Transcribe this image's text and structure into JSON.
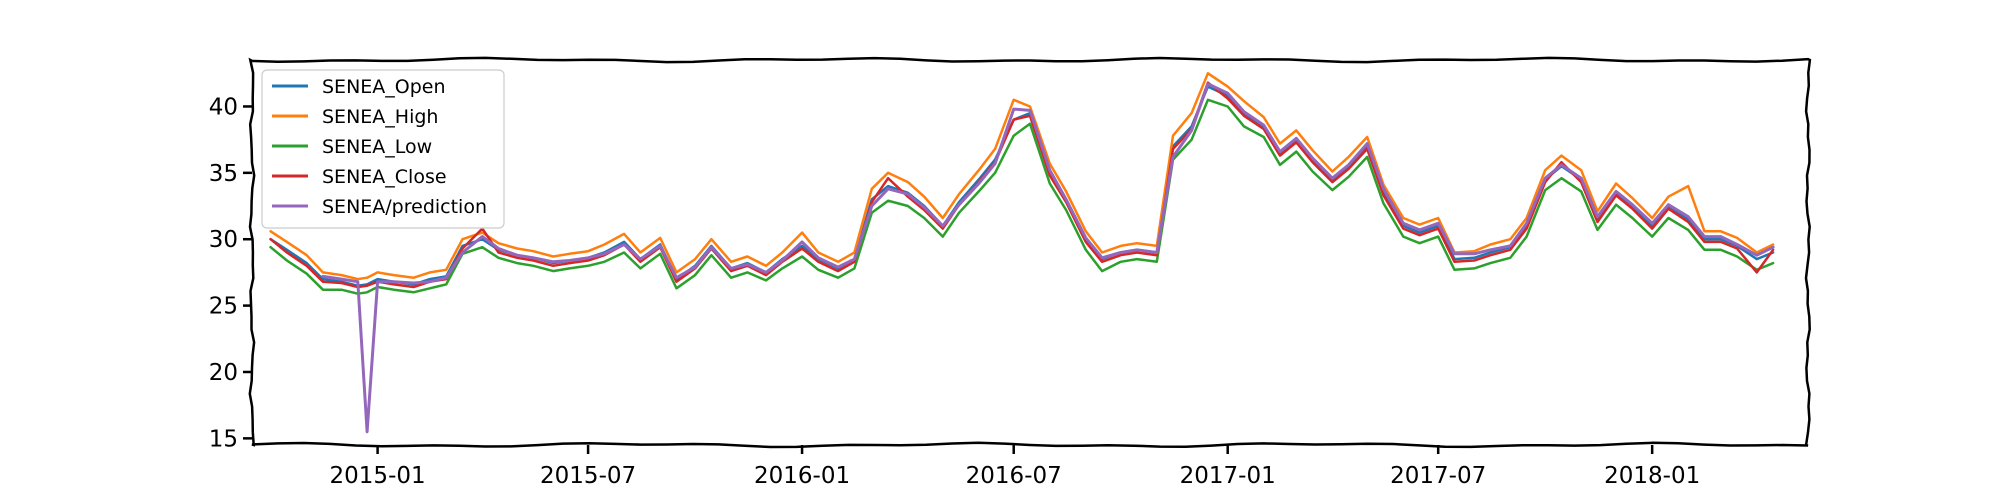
{
  "chart_data": {
    "type": "line",
    "title": "",
    "xlabel": "",
    "ylabel": "",
    "x_range": [
      "2014-09-15",
      "2018-05-15"
    ],
    "ylim": [
      14.5,
      43.5
    ],
    "x_ticks": [
      {
        "date": "2015-01-01",
        "label": "2015-01"
      },
      {
        "date": "2015-07-01",
        "label": "2015-07"
      },
      {
        "date": "2016-01-01",
        "label": "2016-01"
      },
      {
        "date": "2016-07-01",
        "label": "2016-07"
      },
      {
        "date": "2017-01-01",
        "label": "2017-01"
      },
      {
        "date": "2017-07-01",
        "label": "2017-07"
      },
      {
        "date": "2018-01-01",
        "label": "2018-01"
      }
    ],
    "y_ticks": [
      15,
      20,
      25,
      30,
      35,
      40
    ],
    "grid": false,
    "legend_position": "top-left",
    "x": [
      "2014-10-01",
      "2014-10-15",
      "2014-11-01",
      "2014-11-15",
      "2014-12-01",
      "2014-12-15",
      "2014-12-23",
      "2015-01-01",
      "2015-01-15",
      "2015-02-01",
      "2015-02-15",
      "2015-03-01",
      "2015-03-15",
      "2015-04-01",
      "2015-04-15",
      "2015-05-01",
      "2015-05-15",
      "2015-06-01",
      "2015-06-15",
      "2015-07-01",
      "2015-07-15",
      "2015-08-01",
      "2015-08-15",
      "2015-09-01",
      "2015-09-15",
      "2015-10-01",
      "2015-10-15",
      "2015-11-01",
      "2015-11-15",
      "2015-12-01",
      "2015-12-15",
      "2016-01-01",
      "2016-01-15",
      "2016-02-01",
      "2016-02-15",
      "2016-03-01",
      "2016-03-15",
      "2016-04-01",
      "2016-04-15",
      "2016-05-01",
      "2016-05-15",
      "2016-06-01",
      "2016-06-15",
      "2016-07-01",
      "2016-07-15",
      "2016-08-01",
      "2016-08-15",
      "2016-09-01",
      "2016-09-15",
      "2016-10-01",
      "2016-10-15",
      "2016-11-01",
      "2016-11-15",
      "2016-12-01",
      "2016-12-15",
      "2017-01-01",
      "2017-01-15",
      "2017-02-01",
      "2017-02-15",
      "2017-03-01",
      "2017-03-15",
      "2017-04-01",
      "2017-04-15",
      "2017-05-01",
      "2017-05-15",
      "2017-06-01",
      "2017-06-15",
      "2017-07-01",
      "2017-07-15",
      "2017-08-01",
      "2017-08-15",
      "2017-09-01",
      "2017-09-15",
      "2017-10-01",
      "2017-10-15",
      "2017-11-01",
      "2017-11-15",
      "2017-12-01",
      "2017-12-15",
      "2018-01-01",
      "2018-01-15",
      "2018-02-01",
      "2018-02-15",
      "2018-03-01",
      "2018-03-15",
      "2018-04-01",
      "2018-04-15"
    ],
    "series": [
      {
        "name": "SENEA_Open",
        "color": "#1f77b4",
        "values": [
          30.0,
          29.2,
          28.2,
          27.0,
          26.8,
          26.5,
          26.6,
          27.0,
          26.8,
          26.6,
          27.0,
          27.2,
          29.5,
          30.0,
          29.2,
          28.8,
          28.6,
          28.2,
          28.4,
          28.6,
          29.0,
          29.8,
          28.5,
          29.6,
          27.0,
          28.0,
          29.5,
          27.8,
          28.2,
          27.5,
          28.5,
          29.5,
          28.5,
          27.8,
          28.5,
          33.0,
          34.0,
          33.5,
          32.5,
          31.0,
          32.8,
          34.5,
          36.0,
          39.0,
          39.5,
          35.0,
          33.0,
          30.0,
          28.5,
          29.0,
          29.2,
          29.0,
          37.0,
          38.5,
          41.5,
          40.8,
          39.5,
          38.5,
          36.5,
          37.5,
          36.0,
          34.5,
          35.5,
          37.0,
          33.5,
          31.0,
          30.5,
          31.0,
          28.5,
          28.6,
          29.0,
          29.4,
          31.0,
          34.5,
          35.5,
          34.5,
          31.5,
          33.5,
          32.5,
          31.0,
          32.5,
          31.5,
          30.0,
          30.0,
          29.5,
          28.5,
          29.0
        ]
      },
      {
        "name": "SENEA_High",
        "color": "#ff7f0e",
        "values": [
          30.6,
          29.8,
          28.8,
          27.5,
          27.3,
          27.0,
          27.1,
          27.5,
          27.3,
          27.1,
          27.5,
          27.7,
          30.0,
          30.5,
          29.7,
          29.3,
          29.1,
          28.7,
          28.9,
          29.1,
          29.6,
          30.4,
          29.0,
          30.1,
          27.5,
          28.5,
          30.0,
          28.3,
          28.7,
          28.0,
          29.0,
          30.5,
          29.0,
          28.3,
          29.0,
          33.8,
          35.0,
          34.3,
          33.2,
          31.6,
          33.4,
          35.2,
          36.8,
          40.5,
          40.0,
          35.7,
          33.6,
          30.6,
          29.0,
          29.5,
          29.7,
          29.5,
          37.8,
          39.5,
          42.5,
          41.5,
          40.4,
          39.2,
          37.2,
          38.2,
          36.7,
          35.1,
          36.2,
          37.7,
          34.1,
          31.6,
          31.1,
          31.6,
          29.0,
          29.1,
          29.6,
          30.0,
          31.6,
          35.2,
          36.3,
          35.2,
          32.1,
          34.2,
          33.1,
          31.6,
          33.2,
          34.0,
          30.6,
          30.6,
          30.1,
          29.0,
          29.6
        ]
      },
      {
        "name": "SENEA_Low",
        "color": "#2ca02c",
        "values": [
          29.4,
          28.4,
          27.4,
          26.2,
          26.2,
          25.9,
          26.0,
          26.4,
          26.2,
          26.0,
          26.3,
          26.6,
          28.9,
          29.4,
          28.6,
          28.2,
          28.0,
          27.6,
          27.8,
          28.0,
          28.3,
          29.0,
          27.8,
          28.9,
          26.3,
          27.3,
          28.8,
          27.1,
          27.5,
          26.9,
          27.8,
          28.7,
          27.7,
          27.1,
          27.8,
          32.0,
          32.9,
          32.5,
          31.6,
          30.2,
          32.0,
          33.6,
          35.0,
          37.8,
          38.7,
          34.2,
          32.2,
          29.2,
          27.6,
          28.3,
          28.5,
          28.3,
          36.0,
          37.5,
          40.5,
          40.0,
          38.5,
          37.7,
          35.6,
          36.6,
          35.1,
          33.7,
          34.7,
          36.2,
          32.7,
          30.2,
          29.7,
          30.2,
          27.7,
          27.8,
          28.2,
          28.6,
          30.2,
          33.7,
          34.6,
          33.6,
          30.7,
          32.6,
          31.6,
          30.2,
          31.6,
          30.7,
          29.2,
          29.2,
          28.7,
          27.7,
          28.2
        ]
      },
      {
        "name": "SENEA_Close",
        "color": "#d62728",
        "values": [
          30.0,
          29.0,
          28.0,
          26.8,
          26.7,
          26.4,
          26.5,
          26.8,
          26.6,
          26.4,
          26.8,
          27.0,
          29.3,
          30.8,
          29.0,
          28.6,
          28.4,
          28.0,
          28.2,
          28.4,
          28.8,
          29.6,
          28.3,
          29.4,
          26.8,
          27.8,
          29.3,
          27.6,
          28.0,
          27.3,
          28.3,
          29.3,
          28.3,
          27.6,
          28.3,
          32.8,
          34.6,
          33.2,
          32.2,
          30.8,
          32.6,
          34.3,
          35.8,
          39.0,
          39.3,
          34.8,
          32.8,
          29.8,
          28.3,
          28.8,
          29.0,
          28.8,
          36.8,
          38.3,
          41.8,
          40.6,
          39.3,
          38.3,
          36.3,
          37.3,
          35.8,
          34.3,
          35.3,
          36.8,
          33.3,
          30.8,
          30.3,
          30.8,
          28.3,
          28.4,
          28.8,
          29.2,
          30.8,
          34.3,
          35.8,
          34.3,
          31.3,
          33.3,
          32.3,
          30.8,
          32.3,
          31.3,
          29.8,
          29.8,
          29.3,
          27.5,
          29.2
        ]
      },
      {
        "name": "SENEA/prediction",
        "color": "#9467bd",
        "values": [
          null,
          null,
          null,
          27.2,
          27.0,
          26.8,
          15.5,
          26.8,
          26.8,
          26.7,
          26.8,
          27.1,
          29.0,
          30.2,
          29.3,
          28.8,
          28.6,
          28.3,
          28.4,
          28.6,
          28.9,
          29.6,
          28.5,
          29.5,
          27.1,
          27.9,
          29.4,
          27.8,
          28.1,
          27.5,
          28.4,
          29.8,
          28.6,
          27.9,
          28.5,
          32.5,
          33.8,
          33.4,
          32.4,
          31.0,
          32.6,
          34.2,
          35.7,
          39.8,
          39.7,
          35.2,
          33.0,
          30.1,
          28.6,
          29.0,
          29.2,
          29.0,
          36.2,
          38.2,
          41.7,
          41.0,
          39.6,
          38.6,
          36.6,
          37.6,
          36.1,
          34.6,
          35.6,
          37.2,
          33.8,
          31.2,
          30.7,
          31.2,
          28.9,
          28.9,
          29.2,
          29.5,
          31.2,
          34.6,
          35.6,
          34.6,
          31.7,
          33.6,
          32.6,
          31.2,
          32.6,
          31.7,
          30.2,
          30.2,
          29.6,
          28.8,
          29.4
        ]
      }
    ]
  }
}
